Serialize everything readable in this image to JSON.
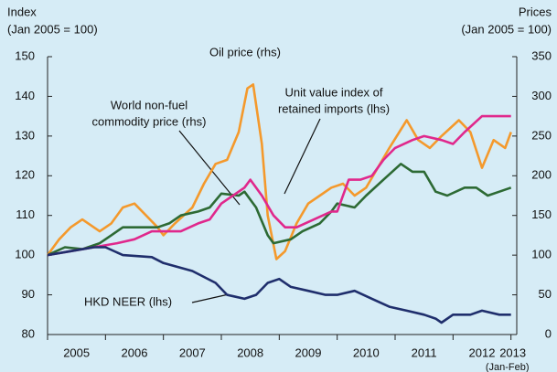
{
  "chart_data": {
    "type": "line",
    "y_label_lines": [
      "Index",
      "(Jan 2005 = 100)"
    ],
    "y2_label_lines": [
      "Prices",
      "(Jan 2005 = 100)"
    ],
    "xlim": [
      2005,
      2013.1
    ],
    "xticks": [
      {
        "value": 2005,
        "label": "2005"
      },
      {
        "value": 2006,
        "label": "2006"
      },
      {
        "value": 2007,
        "label": "2007"
      },
      {
        "value": 2008,
        "label": "2008"
      },
      {
        "value": 2009,
        "label": "2009"
      },
      {
        "value": 2010,
        "label": "2010"
      },
      {
        "value": 2011,
        "label": "2011"
      },
      {
        "value": 2012,
        "label": "2012"
      },
      {
        "value": 2013,
        "label": "2013"
      }
    ],
    "x_last_note": "(Jan-Feb)",
    "ylim": [
      80,
      150
    ],
    "yticks": [
      80,
      90,
      100,
      110,
      120,
      130,
      140,
      150
    ],
    "y2lim": [
      0,
      350
    ],
    "y2ticks": [
      0,
      50,
      100,
      150,
      200,
      250,
      300,
      350
    ],
    "annotations": {
      "oil": "Oil price (rhs)",
      "world": [
        "World non-fuel",
        "commodity price (rhs)"
      ],
      "unit": [
        "Unit value index of",
        "retained imports (lhs)"
      ],
      "neer": "HKD NEER (lhs)"
    },
    "series": [
      {
        "name": "Oil price (rhs)",
        "color": "#f4992c",
        "axis": "y2",
        "x": [
          2005,
          2005.2,
          2005.4,
          2005.6,
          2005.9,
          2006.1,
          2006.3,
          2006.5,
          2006.7,
          2006.9,
          2007.0,
          2007.2,
          2007.5,
          2007.7,
          2007.9,
          2008.1,
          2008.3,
          2008.45,
          2008.55,
          2008.7,
          2008.8,
          2008.95,
          2009.1,
          2009.3,
          2009.5,
          2009.7,
          2009.9,
          2010.1,
          2010.3,
          2010.5,
          2010.7,
          2010.9,
          2011.2,
          2011.4,
          2011.6,
          2011.8,
          2012.1,
          2012.3,
          2012.5,
          2012.7,
          2012.9,
          2013.0
        ],
        "values": [
          100,
          120,
          135,
          145,
          130,
          140,
          160,
          165,
          150,
          135,
          125,
          140,
          160,
          190,
          215,
          220,
          255,
          310,
          315,
          240,
          150,
          95,
          105,
          140,
          165,
          175,
          185,
          190,
          175,
          185,
          210,
          235,
          270,
          245,
          235,
          250,
          270,
          255,
          210,
          245,
          235,
          255
        ]
      },
      {
        "name": "World non-fuel commodity price (rhs)",
        "color": "#2d6a34",
        "axis": "y2",
        "x": [
          2005,
          2005.3,
          2005.6,
          2005.9,
          2006.1,
          2006.3,
          2006.6,
          2006.9,
          2007.1,
          2007.3,
          2007.6,
          2007.8,
          2008.0,
          2008.3,
          2008.4,
          2008.6,
          2008.8,
          2008.9,
          2009.2,
          2009.4,
          2009.7,
          2009.9,
          2010.0,
          2010.3,
          2010.5,
          2010.8,
          2011.1,
          2011.3,
          2011.5,
          2011.7,
          2011.9,
          2012.2,
          2012.4,
          2012.6,
          2012.8,
          2013.0
        ],
        "values": [
          100,
          110,
          107.5,
          115,
          125,
          135,
          135,
          135,
          140,
          150,
          155,
          160,
          177.5,
          175,
          180,
          160,
          125,
          115,
          120,
          130,
          140,
          155,
          165,
          160,
          175,
          195,
          215,
          205,
          205,
          180,
          175,
          185,
          185,
          175,
          180,
          185
        ]
      },
      {
        "name": "Unit value index of retained imports (lhs)",
        "color": "#e0288c",
        "x": [
          2005,
          2005.4,
          2005.8,
          2006.2,
          2006.5,
          2006.8,
          2007.0,
          2007.3,
          2007.6,
          2007.8,
          2008.0,
          2008.2,
          2008.4,
          2008.5,
          2008.7,
          2008.9,
          2009.1,
          2009.3,
          2009.6,
          2009.9,
          2010.0,
          2010.2,
          2010.4,
          2010.6,
          2010.8,
          2011.0,
          2011.3,
          2011.5,
          2011.8,
          2012.0,
          2012.2,
          2012.5,
          2012.8,
          2013.0
        ],
        "values": [
          100,
          101,
          102,
          103,
          104,
          106,
          106,
          106,
          108,
          109,
          113,
          115,
          117,
          119,
          115,
          110,
          107,
          107,
          109,
          111,
          111,
          119,
          119,
          120,
          124,
          127,
          129,
          130,
          129,
          128,
          131,
          135,
          135,
          135
        ]
      },
      {
        "name": "HKD NEER (lhs)",
        "color": "#1f2e6c",
        "x": [
          2005,
          2005.4,
          2005.8,
          2006.0,
          2006.3,
          2006.8,
          2007.0,
          2007.5,
          2007.9,
          2008.1,
          2008.4,
          2008.6,
          2008.8,
          2009.0,
          2009.2,
          2009.5,
          2009.8,
          2010.0,
          2010.3,
          2010.6,
          2010.9,
          2011.2,
          2011.5,
          2011.7,
          2011.8,
          2012.0,
          2012.3,
          2012.5,
          2012.8,
          2013.0
        ],
        "values": [
          100,
          101,
          102,
          102,
          100,
          99.5,
          98,
          96,
          93,
          90,
          89,
          90,
          93,
          94,
          92,
          91,
          90,
          90,
          91,
          89,
          87,
          86,
          85,
          84,
          83,
          85,
          85,
          86,
          85,
          85
        ]
      }
    ]
  }
}
